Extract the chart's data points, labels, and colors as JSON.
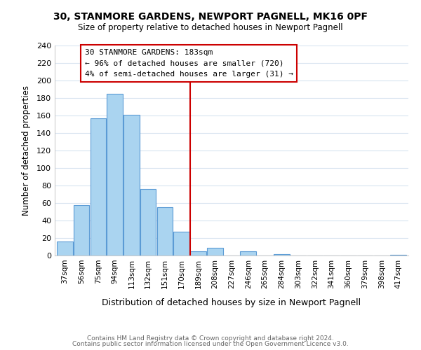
{
  "title1": "30, STANMORE GARDENS, NEWPORT PAGNELL, MK16 0PF",
  "title2": "Size of property relative to detached houses in Newport Pagnell",
  "xlabel": "Distribution of detached houses by size in Newport Pagnell",
  "ylabel": "Number of detached properties",
  "bar_labels": [
    "37sqm",
    "56sqm",
    "75sqm",
    "94sqm",
    "113sqm",
    "132sqm",
    "151sqm",
    "170sqm",
    "189sqm",
    "208sqm",
    "227sqm",
    "246sqm",
    "265sqm",
    "284sqm",
    "303sqm",
    "322sqm",
    "341sqm",
    "360sqm",
    "379sqm",
    "398sqm",
    "417sqm"
  ],
  "bar_heights": [
    16,
    58,
    157,
    185,
    161,
    76,
    55,
    27,
    5,
    9,
    0,
    5,
    0,
    2,
    0,
    0,
    0,
    0,
    0,
    0,
    1
  ],
  "bar_color": "#aad4f0",
  "bar_edge_color": "#5b9bd5",
  "vline_x": 7.5,
  "vline_color": "#cc0000",
  "annotation_title": "30 STANMORE GARDENS: 183sqm",
  "annotation_line1": "← 96% of detached houses are smaller (720)",
  "annotation_line2": "4% of semi-detached houses are larger (31) →",
  "annotation_box_color": "#ffffff",
  "annotation_box_edge": "#cc0000",
  "ylim": [
    0,
    240
  ],
  "yticks": [
    0,
    20,
    40,
    60,
    80,
    100,
    120,
    140,
    160,
    180,
    200,
    220,
    240
  ],
  "footer1": "Contains HM Land Registry data © Crown copyright and database right 2024.",
  "footer2": "Contains public sector information licensed under the Open Government Licence v3.0.",
  "background_color": "#ffffff",
  "grid_color": "#d8e4f0"
}
